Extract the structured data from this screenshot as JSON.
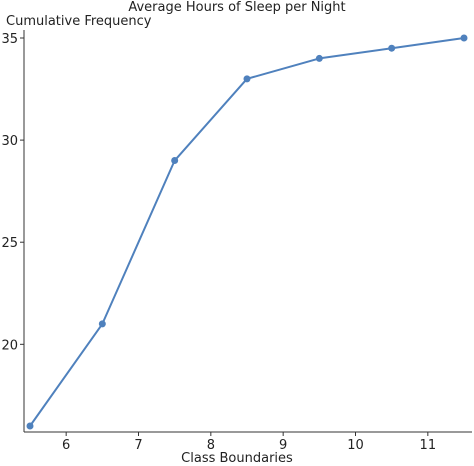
{
  "chart_data": {
    "type": "line",
    "title": "Average Hours of Sleep per Night",
    "xlabel": "Class Boundaries",
    "ylabel": "Cumulative Frequency",
    "x": [
      5.5,
      6.5,
      7.5,
      8.5,
      9.5,
      10.5,
      11.5
    ],
    "series": [
      {
        "values": [
          16,
          21,
          29,
          33,
          34,
          34.5,
          35
        ]
      }
    ],
    "xlim": [
      5.5,
      11.5
    ],
    "ylim": [
      16,
      35
    ],
    "xticks": [
      6,
      7,
      8,
      9,
      10,
      11
    ],
    "yticks": [
      20,
      25,
      30,
      35
    ],
    "grid": false,
    "line_color": "#4f81bd"
  }
}
